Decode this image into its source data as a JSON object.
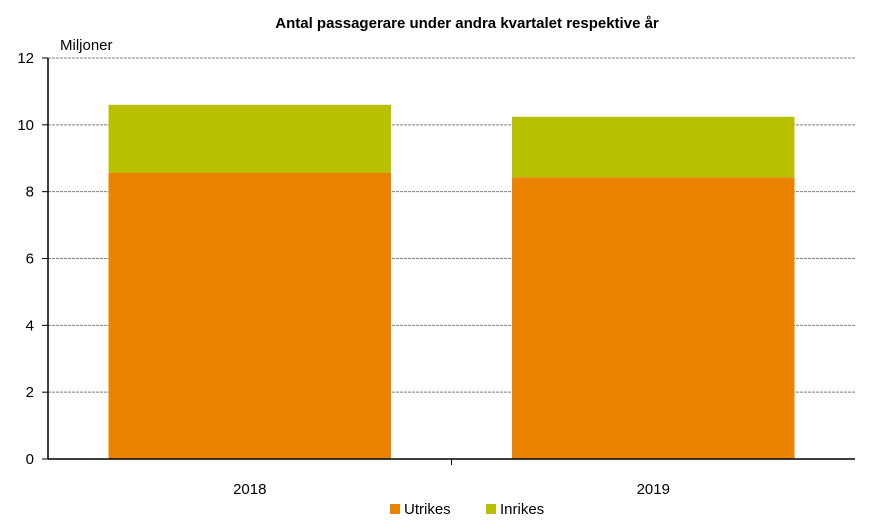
{
  "chart_data": {
    "type": "bar",
    "stacked": true,
    "title": "Antal passagerare under andra kvartalet respektive år",
    "unit_label": "Miljoner",
    "categories": [
      "2018",
      "2019"
    ],
    "series": [
      {
        "name": "Utrikes",
        "values": [
          8.57,
          8.43
        ],
        "color": "#e98300"
      },
      {
        "name": "Inrikes",
        "values": [
          2.03,
          1.81
        ],
        "color": "#b8c000"
      }
    ],
    "ylim": [
      0,
      12
    ],
    "yticks": [
      "0",
      "2",
      "4",
      "6",
      "8",
      "10",
      "12"
    ],
    "grid": true,
    "legend_position": "bottom-center"
  }
}
